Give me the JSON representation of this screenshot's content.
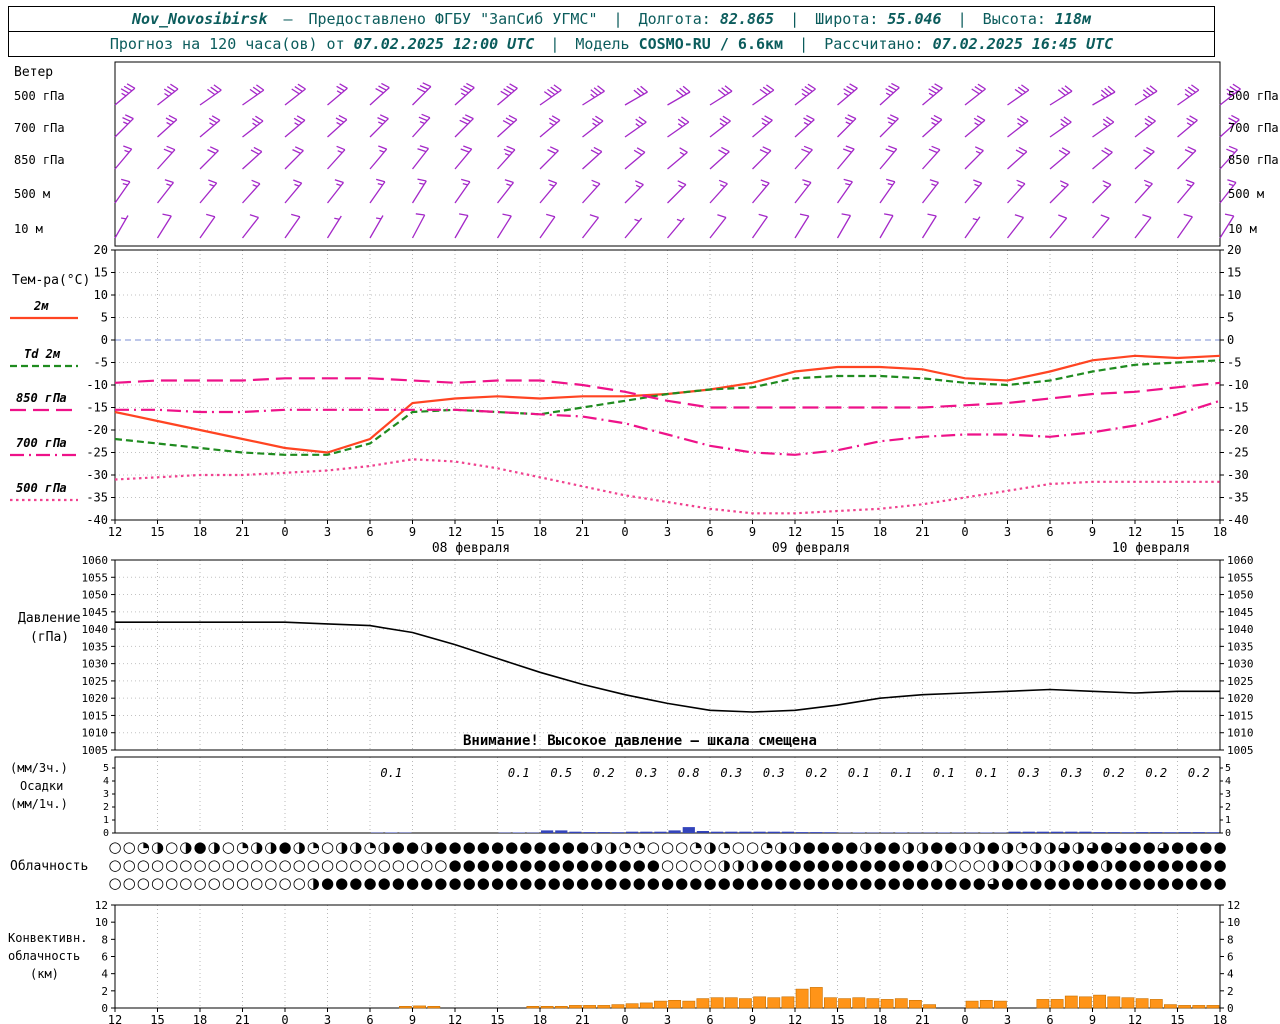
{
  "header": {
    "station": "Nov_Novosibirsk",
    "dash": "—",
    "provider": "Предоставлено ФГБУ \"ЗапСиб УГМС\"",
    "sep": "|",
    "lon_label": "Долгота:",
    "lon": "82.865",
    "lat_label": "Широта:",
    "lat": "55.046",
    "alt_label": "Высота:",
    "alt": "118м",
    "forecast_label": "Прогноз на 120 часа(ов) от",
    "forecast_time": "07.02.2025 12:00 UTC",
    "model_label": "Модель",
    "model": "COSMO-RU / 6.6км",
    "calc_label": "Рассчитано:",
    "calc_time": "07.02.2025 16:45 UTC"
  },
  "time_axis": {
    "hours": [
      "12",
      "15",
      "18",
      "21",
      "0",
      "3",
      "6",
      "9",
      "12",
      "15",
      "18",
      "21",
      "0",
      "3",
      "6",
      "9",
      "12",
      "15",
      "18",
      "21",
      "0",
      "3",
      "6",
      "9",
      "12",
      "15",
      "18"
    ],
    "dates": [
      {
        "label": "08 февраля",
        "tick": 8
      },
      {
        "label": "09 февраля",
        "tick": 16
      },
      {
        "label": "10 февраля",
        "tick": 24
      }
    ]
  },
  "chart_data": [
    {
      "id": "wind",
      "type": "wind-barbs",
      "title": "Ветер",
      "color": "#a428c8",
      "levels": [
        {
          "label": "500 гПа",
          "barbs": [
            [
              50,
              18
            ],
            [
              52,
              18
            ],
            [
              55,
              16
            ],
            [
              55,
              15
            ],
            [
              52,
              15
            ],
            [
              50,
              14
            ],
            [
              48,
              15
            ],
            [
              45,
              16
            ],
            [
              48,
              18
            ],
            [
              50,
              20
            ],
            [
              55,
              20
            ],
            [
              58,
              18
            ],
            [
              60,
              16
            ],
            [
              60,
              15
            ],
            [
              58,
              15
            ],
            [
              55,
              16
            ],
            [
              52,
              17
            ],
            [
              50,
              18
            ],
            [
              48,
              18
            ],
            [
              50,
              17
            ],
            [
              52,
              16
            ],
            [
              55,
              15
            ],
            [
              58,
              16
            ],
            [
              60,
              17
            ],
            [
              58,
              18
            ],
            [
              55,
              18
            ],
            [
              52,
              19
            ]
          ]
        },
        {
          "label": "700 гПа",
          "barbs": [
            [
              45,
              12
            ],
            [
              48,
              13
            ],
            [
              50,
              14
            ],
            [
              52,
              13
            ],
            [
              50,
              12
            ],
            [
              48,
              12
            ],
            [
              45,
              13
            ],
            [
              42,
              14
            ],
            [
              45,
              15
            ],
            [
              48,
              15
            ],
            [
              50,
              14
            ],
            [
              52,
              13
            ],
            [
              55,
              12
            ],
            [
              55,
              12
            ],
            [
              52,
              13
            ],
            [
              50,
              13
            ],
            [
              48,
              14
            ],
            [
              45,
              14
            ],
            [
              45,
              13
            ],
            [
              48,
              12
            ],
            [
              50,
              12
            ],
            [
              52,
              13
            ],
            [
              55,
              13
            ],
            [
              55,
              14
            ],
            [
              52,
              14
            ],
            [
              50,
              13
            ],
            [
              48,
              13
            ]
          ]
        },
        {
          "label": "850 гПа",
          "barbs": [
            [
              40,
              9
            ],
            [
              42,
              10
            ],
            [
              45,
              10
            ],
            [
              48,
              11
            ],
            [
              45,
              10
            ],
            [
              42,
              9
            ],
            [
              40,
              9
            ],
            [
              38,
              10
            ],
            [
              40,
              11
            ],
            [
              42,
              12
            ],
            [
              45,
              11
            ],
            [
              48,
              10
            ],
            [
              50,
              10
            ],
            [
              50,
              9
            ],
            [
              48,
              10
            ],
            [
              45,
              10
            ],
            [
              42,
              11
            ],
            [
              40,
              11
            ],
            [
              40,
              10
            ],
            [
              42,
              10
            ],
            [
              45,
              9
            ],
            [
              48,
              10
            ],
            [
              50,
              10
            ],
            [
              50,
              11
            ],
            [
              48,
              11
            ],
            [
              45,
              10
            ],
            [
              42,
              10
            ]
          ]
        },
        {
          "label": "500 м",
          "barbs": [
            [
              35,
              7
            ],
            [
              38,
              8
            ],
            [
              40,
              8
            ],
            [
              42,
              9
            ],
            [
              40,
              8
            ],
            [
              38,
              7
            ],
            [
              35,
              7
            ],
            [
              32,
              8
            ],
            [
              35,
              9
            ],
            [
              38,
              9
            ],
            [
              40,
              8
            ],
            [
              42,
              8
            ],
            [
              45,
              7
            ],
            [
              45,
              7
            ],
            [
              42,
              8
            ],
            [
              40,
              8
            ],
            [
              38,
              9
            ],
            [
              35,
              9
            ],
            [
              35,
              8
            ],
            [
              38,
              8
            ],
            [
              40,
              7
            ],
            [
              42,
              8
            ],
            [
              45,
              8
            ],
            [
              45,
              9
            ],
            [
              42,
              9
            ],
            [
              40,
              8
            ],
            [
              38,
              8
            ]
          ]
        },
        {
          "label": "10 м",
          "barbs": [
            [
              30,
              4
            ],
            [
              32,
              5
            ],
            [
              35,
              5
            ],
            [
              38,
              6
            ],
            [
              35,
              5
            ],
            [
              32,
              4
            ],
            [
              30,
              4
            ],
            [
              28,
              5
            ],
            [
              30,
              6
            ],
            [
              32,
              6
            ],
            [
              35,
              5
            ],
            [
              38,
              5
            ],
            [
              40,
              4
            ],
            [
              40,
              4
            ],
            [
              38,
              5
            ],
            [
              35,
              5
            ],
            [
              32,
              6
            ],
            [
              30,
              6
            ],
            [
              30,
              5
            ],
            [
              32,
              5
            ],
            [
              35,
              4
            ],
            [
              38,
              5
            ],
            [
              40,
              5
            ],
            [
              40,
              6
            ],
            [
              38,
              6
            ],
            [
              35,
              5
            ],
            [
              32,
              5
            ]
          ]
        }
      ]
    },
    {
      "id": "temperature",
      "type": "line",
      "title": "Тем-ра(°C)",
      "ylim": [
        -40,
        20
      ],
      "yticks": [
        20,
        15,
        10,
        5,
        0,
        -5,
        -10,
        -15,
        -20,
        -25,
        -30,
        -35,
        -40
      ],
      "series": [
        {
          "name": "2м",
          "style": "solid",
          "color": "#ff4422",
          "values": [
            -16,
            -18,
            -20,
            -22,
            -24,
            -25,
            -22,
            -14,
            -13,
            -12.5,
            -13,
            -12.5,
            -12.5,
            -12,
            -11,
            -9.5,
            -7,
            -6,
            -6,
            -6.5,
            -8.5,
            -9,
            -7,
            -4.5,
            -3.5,
            -4,
            -3.5
          ]
        },
        {
          "name": "Td 2м",
          "style": "dashed",
          "color": "#1f8b1f",
          "values": [
            -22,
            -23,
            -24,
            -25,
            -25.5,
            -25.5,
            -23,
            -16,
            -15.5,
            -16,
            -16.5,
            -15,
            -13.5,
            -12,
            -11,
            -10.5,
            -8.5,
            -8,
            -8,
            -8.5,
            -9.5,
            -10,
            -9,
            -7,
            -5.5,
            -5,
            -4.5
          ]
        },
        {
          "name": "850 гПа",
          "style": "longdash",
          "color": "#ee1289",
          "values": [
            -9.5,
            -9,
            -9,
            -9,
            -8.5,
            -8.5,
            -8.5,
            -9,
            -9.5,
            -9,
            -9,
            -10,
            -11.5,
            -13.5,
            -15,
            -15,
            -15,
            -15,
            -15,
            -15,
            -14.5,
            -14,
            -13,
            -12,
            -11.5,
            -10.5,
            -9.5
          ]
        },
        {
          "name": "700 гПа",
          "style": "dashdot",
          "color": "#ee1289",
          "values": [
            -15.5,
            -15.5,
            -16,
            -16,
            -15.5,
            -15.5,
            -15.5,
            -15.5,
            -15.5,
            -16,
            -16.5,
            -17,
            -18.5,
            -21,
            -23.5,
            -25,
            -25.5,
            -24.5,
            -22.5,
            -21.5,
            -21,
            -21,
            -21.5,
            -20.5,
            -19,
            -16.5,
            -13.5
          ]
        },
        {
          "name": "500 гПа",
          "style": "dotted",
          "color": "#f0428f",
          "values": [
            -31,
            -30.5,
            -30,
            -30,
            -29.5,
            -29,
            -28,
            -26.5,
            -27,
            -28.5,
            -30.5,
            -32.5,
            -34.5,
            -36,
            -37.5,
            -38.5,
            -38.5,
            -38,
            -37.5,
            -36.5,
            -35,
            -33.5,
            -32,
            -31.5,
            -31.5,
            -31.5,
            -31.5
          ]
        }
      ]
    },
    {
      "id": "pressure",
      "type": "line",
      "label_lines": [
        "Давление",
        "(гПа)"
      ],
      "ylim": [
        1005,
        1060
      ],
      "yticks": [
        1060,
        1055,
        1050,
        1045,
        1040,
        1035,
        1030,
        1025,
        1020,
        1015,
        1010,
        1005
      ],
      "color": "#000000",
      "values": [
        1042,
        1042,
        1042,
        1042,
        1042,
        1041.5,
        1041,
        1039,
        1035.5,
        1031.5,
        1027.5,
        1024,
        1021,
        1018.5,
        1016.5,
        1016,
        1016.5,
        1018,
        1020,
        1021,
        1021.5,
        1022,
        1022.5,
        1022,
        1021.5,
        1022,
        1022
      ],
      "warning": "Внимание! Высокое давление — шкала смещена"
    },
    {
      "id": "precipitation",
      "type": "bar",
      "label_lines": [
        "(мм/3ч.)",
        "Осадки",
        "(мм/1ч.)"
      ],
      "ylim": [
        0,
        5
      ],
      "yticks": [
        5,
        4,
        3,
        2,
        1,
        0
      ],
      "bar_color": "#3344bb",
      "amounts_3h": [
        0,
        0,
        0,
        0,
        0,
        0,
        0.1,
        0,
        0,
        0.1,
        0.5,
        0.2,
        0.3,
        0.8,
        0.3,
        0.3,
        0.2,
        0.1,
        0.1,
        0.1,
        0.1,
        0.3,
        0.3,
        0.2,
        0.2,
        0.2,
        0
      ],
      "hourly": [
        0,
        0,
        0,
        0,
        0,
        0,
        0,
        0,
        0,
        0,
        0,
        0,
        0,
        0,
        0,
        0,
        0,
        0,
        0.03,
        0.04,
        0.03,
        0,
        0,
        0,
        0,
        0,
        0,
        0.03,
        0.04,
        0.03,
        0.2,
        0.2,
        0.1,
        0.07,
        0.07,
        0.06,
        0.1,
        0.1,
        0.1,
        0.2,
        0.45,
        0.15,
        0.1,
        0.1,
        0.1,
        0.1,
        0.1,
        0.1,
        0.07,
        0.07,
        0.06,
        0.03,
        0.04,
        0.03,
        0.03,
        0.04,
        0.03,
        0.03,
        0.04,
        0.03,
        0.03,
        0.04,
        0.03,
        0.1,
        0.1,
        0.1,
        0.1,
        0.1,
        0.1,
        0.07,
        0.07,
        0.06,
        0.07,
        0.07,
        0.06,
        0.07,
        0.07,
        0.06
      ]
    },
    {
      "id": "cloudiness",
      "type": "symbols",
      "label": "Облачность",
      "rows": [
        [
          "0012024201",
          "2242102212",
          "4424444444",
          "4444221100",
          "0121001224",
          "4442442244",
          "2242122323",
          "434434444"
        ],
        [
          "0000000000",
          "0000000000",
          "0000444444",
          "4444444440",
          "0002224444",
          "4444444420",
          "0022022244",
          "244444444"
        ],
        [
          "0000000000",
          "0000244444",
          "4444444444",
          "4444444444",
          "4444444444",
          "4444444444",
          "4434444444",
          "444444444"
        ]
      ]
    },
    {
      "id": "convective",
      "type": "bar",
      "label_lines": [
        "Конвективн.",
        "облачность",
        "(км)"
      ],
      "ylim": [
        0,
        12
      ],
      "yticks": [
        12,
        10,
        8,
        6,
        4,
        2,
        0
      ],
      "bar_color": "#ff9418",
      "bar_edge": "#c87000",
      "hourly": [
        0,
        0,
        0,
        0,
        0,
        0,
        0,
        0,
        0,
        0,
        0,
        0,
        0,
        0,
        0,
        0,
        0,
        0,
        0,
        0,
        0.2,
        0.25,
        0.2,
        0,
        0,
        0,
        0,
        0,
        0,
        0.2,
        0.2,
        0.2,
        0.3,
        0.3,
        0.3,
        0.4,
        0.5,
        0.6,
        0.8,
        0.9,
        0.8,
        1.1,
        1.2,
        1.2,
        1.1,
        1.3,
        1.2,
        1.3,
        2.2,
        2.4,
        1.2,
        1.1,
        1.2,
        1.1,
        1.0,
        1.1,
        0.9,
        0.4,
        0,
        0,
        0.8,
        0.9,
        0.8,
        0,
        0,
        1.0,
        1.0,
        1.4,
        1.3,
        1.5,
        1.3,
        1.2,
        1.1,
        1.0,
        0.4,
        0.3,
        0.3,
        0.3
      ]
    }
  ]
}
